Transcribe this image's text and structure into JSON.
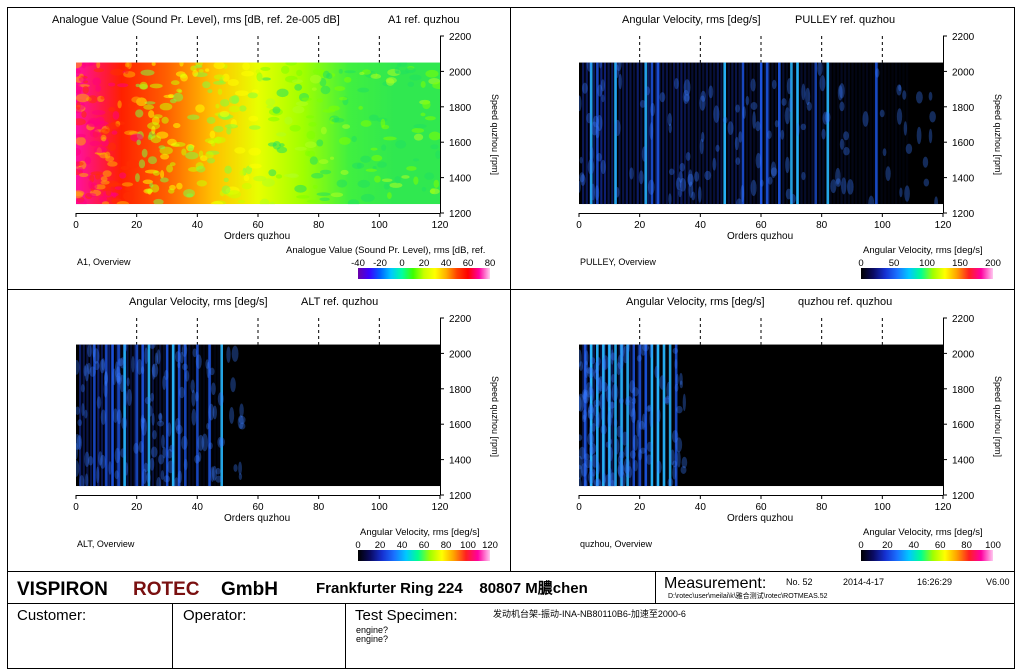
{
  "chart_data": [
    {
      "type": "heatmap",
      "title": "Analogue Value (Sound Pr. Level), rms [dB, ref. 2e-005 dB]",
      "reference": "A1 ref. quzhou",
      "xlabel": "Orders quzhou",
      "ylabel": "Speed quzhou [rpm]",
      "xlim": [
        0,
        120
      ],
      "ylim": [
        1200,
        2200
      ],
      "x_ticks": [
        0,
        20,
        40,
        60,
        80,
        100,
        120
      ],
      "y_ticks": [
        1200,
        1400,
        1600,
        1800,
        2000,
        2200
      ],
      "data_x_range": [
        0,
        120
      ],
      "data_y_range": [
        1250,
        2050
      ],
      "colorbar_label": "Analogue Value (Sound Pr. Level), rms [dB, ref.",
      "colorbar_range": [
        -40,
        80
      ],
      "colorbar_ticks": [
        -40,
        -20,
        0,
        20,
        40,
        60,
        80
      ],
      "colormap": "rainbow",
      "overview_label": "A1, Overview",
      "dominant_x_orders": [
        2,
        4,
        6,
        8,
        10,
        12,
        14
      ]
    },
    {
      "type": "heatmap",
      "title": "Angular Velocity, rms [deg/s]",
      "reference": "PULLEY ref. quzhou",
      "xlabel": "Orders quzhou",
      "ylabel": "Speed quzhou [rpm]",
      "xlim": [
        0,
        120
      ],
      "ylim": [
        1200,
        2200
      ],
      "x_ticks": [
        0,
        20,
        40,
        60,
        80,
        100,
        120
      ],
      "y_ticks": [
        1200,
        1400,
        1600,
        1800,
        2000,
        2200
      ],
      "data_x_range": [
        0,
        120
      ],
      "data_y_range": [
        1250,
        2050
      ],
      "colorbar_label": "Angular Velocity, rms [deg/s]",
      "colorbar_range": [
        0,
        200
      ],
      "colorbar_ticks": [
        0,
        50,
        100,
        150,
        200
      ],
      "colormap": "rainbow-dark",
      "overview_label": "PULLEY, Overview",
      "dominant_x_orders": [
        4,
        6,
        12,
        22,
        24,
        26,
        48,
        54,
        60,
        62,
        66,
        70,
        72,
        78,
        82,
        98
      ]
    },
    {
      "type": "heatmap",
      "title": "Angular Velocity, rms [deg/s]",
      "reference": "ALT ref. quzhou",
      "xlabel": "Orders quzhou",
      "ylabel": "Speed quzhou [rpm]",
      "xlim": [
        0,
        120
      ],
      "ylim": [
        1200,
        2200
      ],
      "x_ticks": [
        0,
        20,
        40,
        60,
        80,
        100,
        120
      ],
      "y_ticks": [
        1200,
        1400,
        1600,
        1800,
        2000,
        2200
      ],
      "data_x_range": [
        0,
        120
      ],
      "data_y_range": [
        1250,
        2050
      ],
      "colorbar_label": "Angular Velocity, rms [deg/s]",
      "colorbar_range": [
        0,
        120
      ],
      "colorbar_ticks": [
        0,
        20,
        40,
        60,
        80,
        100,
        120
      ],
      "colormap": "rainbow-dark",
      "overview_label": "ALT, Overview",
      "dominant_x_orders": [
        6,
        10,
        12,
        14,
        16,
        20,
        22,
        24,
        30,
        32,
        34,
        36,
        40,
        44,
        48
      ]
    },
    {
      "type": "heatmap",
      "title": "Angular Velocity, rms [deg/s]",
      "reference": "quzhou ref. quzhou",
      "xlabel": "Orders quzhou",
      "ylabel": "Speed quzhou [rpm]",
      "xlim": [
        0,
        120
      ],
      "ylim": [
        1200,
        2200
      ],
      "x_ticks": [
        0,
        20,
        40,
        60,
        80,
        100,
        120
      ],
      "y_ticks": [
        1200,
        1400,
        1600,
        1800,
        2000,
        2200
      ],
      "data_x_range": [
        0,
        120
      ],
      "data_y_range": [
        1250,
        2050
      ],
      "colorbar_label": "Angular Velocity, rms [deg/s]",
      "colorbar_range": [
        0,
        100
      ],
      "colorbar_ticks": [
        0,
        20,
        40,
        60,
        80,
        100
      ],
      "colormap": "rainbow-dark",
      "overview_label": "quzhou, Overview",
      "dominant_x_orders": [
        2,
        4,
        6,
        8,
        10,
        12,
        14,
        16,
        18,
        20,
        22,
        24,
        26,
        28,
        30,
        32
      ]
    }
  ],
  "footer": {
    "company_a": "VISPIRON",
    "company_b": "ROTEC",
    "company_c": "GmbH",
    "address": "Frankfurter Ring 224    80807 M膿chen",
    "measurement_label": "Measurement:",
    "number": "No. 52",
    "date": "2014-4-17",
    "time": "16:26:29",
    "version": "V6.00",
    "path": "D:\\rotec\\user\\meilai\\k\\雅合测试\\rotec\\ROTMEAS.52",
    "customer_label": "Customer:",
    "operator_label": "Operator:",
    "specimen_label": "Test Specimen:",
    "specimen_value": "发动机台架-振动-INA-NB80110B6-加速至2000-6",
    "engine_line_1": "engine?",
    "engine_line_2": "engine?"
  },
  "colors": {
    "border": "#000000",
    "rotec_red": "#7a1010",
    "background": "#ffffff"
  }
}
